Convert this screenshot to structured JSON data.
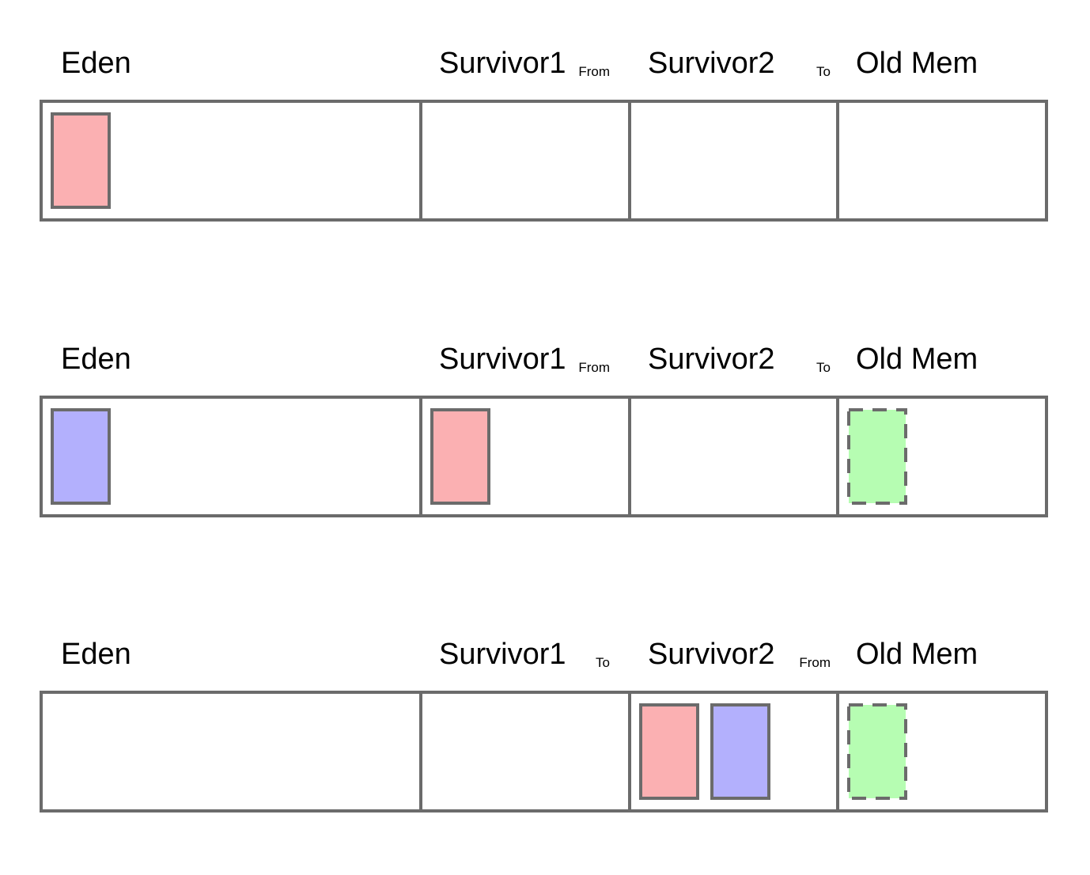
{
  "colors": {
    "border": "#6b6b6b",
    "young_object": "#fbb0b2",
    "new_object": "#b3b0fd",
    "old_object": "#b6fdb2",
    "background": "#ffffff"
  },
  "rows": [
    {
      "regions": [
        {
          "name": "Eden",
          "tag": ""
        },
        {
          "name": "Survivor1",
          "tag": "From"
        },
        {
          "name": "Survivor2",
          "tag": "To"
        },
        {
          "name": "Old Mem",
          "tag": ""
        }
      ],
      "objects": [
        {
          "region": 0,
          "slot": 0,
          "color": "young_object",
          "style": "solid"
        }
      ]
    },
    {
      "regions": [
        {
          "name": "Eden",
          "tag": ""
        },
        {
          "name": "Survivor1",
          "tag": "From"
        },
        {
          "name": "Survivor2",
          "tag": "To"
        },
        {
          "name": "Old Mem",
          "tag": ""
        }
      ],
      "objects": [
        {
          "region": 0,
          "slot": 0,
          "color": "new_object",
          "style": "solid"
        },
        {
          "region": 1,
          "slot": 0,
          "color": "young_object",
          "style": "solid"
        },
        {
          "region": 3,
          "slot": 0,
          "color": "old_object",
          "style": "dashed"
        }
      ]
    },
    {
      "regions": [
        {
          "name": "Eden",
          "tag": ""
        },
        {
          "name": "Survivor1",
          "tag": "To"
        },
        {
          "name": "Survivor2",
          "tag": "From"
        },
        {
          "name": "Old Mem",
          "tag": ""
        }
      ],
      "objects": [
        {
          "region": 2,
          "slot": 0,
          "color": "young_object",
          "style": "solid"
        },
        {
          "region": 2,
          "slot": 1,
          "color": "new_object",
          "style": "solid"
        },
        {
          "region": 3,
          "slot": 0,
          "color": "old_object",
          "style": "dashed"
        }
      ]
    }
  ]
}
